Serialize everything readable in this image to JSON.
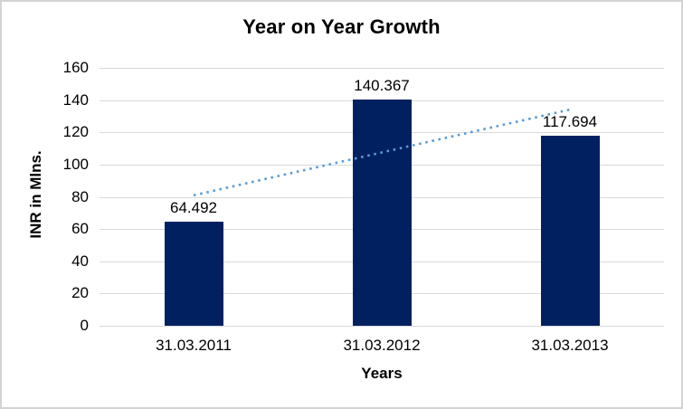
{
  "chart_data": {
    "type": "bar",
    "title": "Year on Year Growth",
    "xlabel": "Years",
    "ylabel": "INR in Mlns.",
    "categories": [
      "31.03.2011",
      "31.03.2012",
      "31.03.2013"
    ],
    "values": [
      64.492,
      140.367,
      117.694
    ],
    "data_labels": [
      "64.492",
      "140.367",
      "117.694"
    ],
    "ylim": [
      0,
      160
    ],
    "ytick_step": 20,
    "grid": true,
    "legend": "none",
    "bar_color": "#002060",
    "gridline_color": "#d9d9d9",
    "text_color": "#000000",
    "trendline": {
      "type": "linear",
      "style": "dotted",
      "color": "#5b9bd5"
    }
  }
}
